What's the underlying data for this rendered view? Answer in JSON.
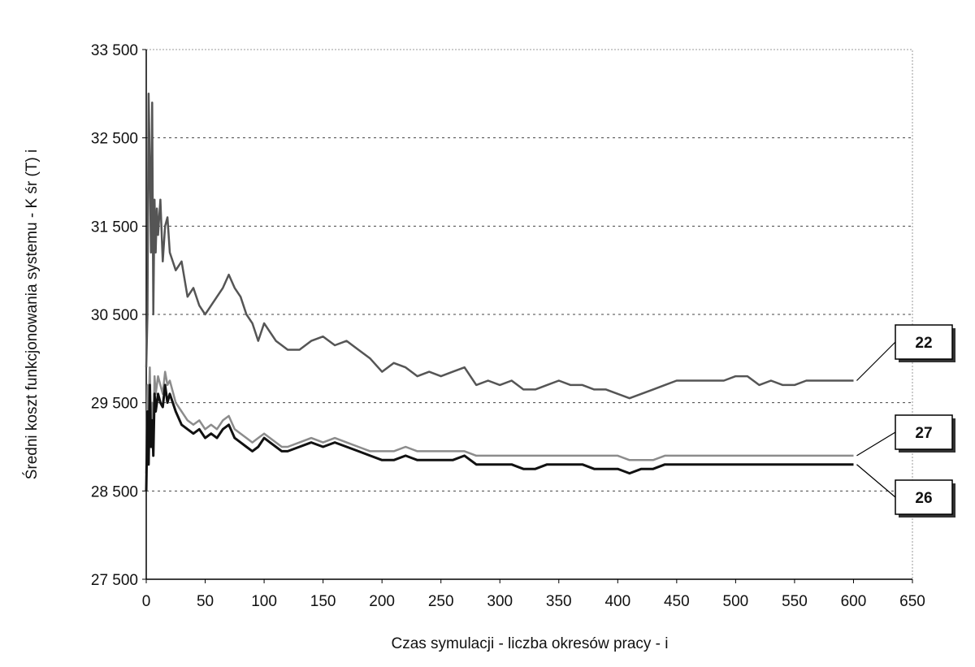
{
  "chart_data": {
    "type": "line",
    "xlabel": "Czas symulacji - liczba okresów pracy - i",
    "ylabel": "Średni koszt funkcjonowania systemu - K śr (T) i",
    "xlim": [
      0,
      650
    ],
    "ylim": [
      27500,
      33500
    ],
    "xticks": [
      0,
      50,
      100,
      150,
      200,
      250,
      300,
      350,
      400,
      450,
      500,
      550,
      600,
      650
    ],
    "yticks": [
      27500,
      28500,
      29500,
      30500,
      31500,
      32500,
      33500
    ],
    "xtick_labels": [
      "0",
      "50",
      "100",
      "150",
      "200",
      "250",
      "300",
      "350",
      "400",
      "450",
      "500",
      "550",
      "600",
      "650"
    ],
    "ytick_labels": [
      "27 500",
      "28 500",
      "29 500",
      "30 500",
      "31 500",
      "32 500",
      "33 500"
    ],
    "grid": "horizontal dashed",
    "legend": "none (callout labels at right)",
    "series": [
      {
        "name": "22",
        "color": "#555555",
        "x": [
          0,
          1,
          2,
          3,
          4,
          5,
          6,
          7,
          8,
          9,
          10,
          12,
          14,
          16,
          18,
          20,
          25,
          30,
          35,
          40,
          45,
          50,
          55,
          60,
          65,
          70,
          75,
          80,
          85,
          90,
          95,
          100,
          105,
          110,
          115,
          120,
          130,
          140,
          150,
          160,
          170,
          180,
          190,
          200,
          210,
          220,
          230,
          240,
          250,
          260,
          270,
          280,
          290,
          300,
          310,
          320,
          330,
          340,
          350,
          360,
          370,
          380,
          390,
          400,
          410,
          420,
          430,
          440,
          450,
          460,
          470,
          480,
          490,
          500,
          510,
          520,
          530,
          540,
          550,
          560,
          570,
          580,
          590,
          600
        ],
        "values": [
          29900,
          30500,
          33000,
          32200,
          31200,
          32900,
          30500,
          31800,
          31200,
          31700,
          31400,
          31800,
          31100,
          31500,
          31600,
          31200,
          31000,
          31100,
          30700,
          30800,
          30600,
          30500,
          30600,
          30700,
          30800,
          30950,
          30800,
          30700,
          30500,
          30400,
          30200,
          30400,
          30300,
          30200,
          30150,
          30100,
          30100,
          30200,
          30250,
          30150,
          30200,
          30100,
          30000,
          29850,
          29950,
          29900,
          29800,
          29850,
          29800,
          29850,
          29900,
          29700,
          29750,
          29700,
          29750,
          29650,
          29650,
          29700,
          29750,
          29700,
          29700,
          29650,
          29650,
          29600,
          29550,
          29600,
          29650,
          29700,
          29750,
          29750,
          29750,
          29750,
          29750,
          29800,
          29800,
          29700,
          29750,
          29700,
          29700,
          29750,
          29750,
          29750,
          29750,
          29750
        ]
      },
      {
        "name": "27",
        "color": "#8c8c8c",
        "x": [
          0,
          1,
          2,
          3,
          4,
          5,
          6,
          7,
          8,
          9,
          10,
          12,
          14,
          16,
          18,
          20,
          25,
          30,
          35,
          40,
          45,
          50,
          55,
          60,
          65,
          70,
          75,
          80,
          85,
          90,
          95,
          100,
          105,
          110,
          115,
          120,
          130,
          140,
          150,
          160,
          170,
          180,
          190,
          200,
          210,
          220,
          230,
          240,
          250,
          260,
          270,
          280,
          290,
          300,
          310,
          320,
          330,
          340,
          350,
          360,
          370,
          380,
          390,
          400,
          410,
          420,
          430,
          440,
          450,
          460,
          470,
          480,
          490,
          500,
          510,
          520,
          530,
          540,
          550,
          560,
          570,
          580,
          590,
          600
        ],
        "values": [
          28700,
          29700,
          29400,
          29900,
          29200,
          29500,
          29000,
          29800,
          29600,
          29700,
          29800,
          29700,
          29600,
          29850,
          29700,
          29750,
          29500,
          29400,
          29300,
          29250,
          29300,
          29200,
          29250,
          29200,
          29300,
          29350,
          29200,
          29150,
          29100,
          29050,
          29100,
          29150,
          29100,
          29050,
          29000,
          29000,
          29050,
          29100,
          29050,
          29100,
          29050,
          29000,
          28950,
          28950,
          28950,
          29000,
          28950,
          28950,
          28950,
          28950,
          28950,
          28900,
          28900,
          28900,
          28900,
          28900,
          28900,
          28900,
          28900,
          28900,
          28900,
          28900,
          28900,
          28900,
          28850,
          28850,
          28850,
          28900,
          28900,
          28900,
          28900,
          28900,
          28900,
          28900,
          28900,
          28900,
          28900,
          28900,
          28900,
          28900,
          28900,
          28900,
          28900,
          28900
        ]
      },
      {
        "name": "26",
        "color": "#111111",
        "x": [
          0,
          1,
          2,
          3,
          4,
          5,
          6,
          7,
          8,
          9,
          10,
          12,
          14,
          16,
          18,
          20,
          25,
          30,
          35,
          40,
          45,
          50,
          55,
          60,
          65,
          70,
          75,
          80,
          85,
          90,
          95,
          100,
          105,
          110,
          115,
          120,
          130,
          140,
          150,
          160,
          170,
          180,
          190,
          200,
          210,
          220,
          230,
          240,
          250,
          260,
          270,
          280,
          290,
          300,
          310,
          320,
          330,
          340,
          350,
          360,
          370,
          380,
          390,
          400,
          410,
          420,
          430,
          440,
          450,
          460,
          470,
          480,
          490,
          500,
          510,
          520,
          530,
          540,
          550,
          560,
          570,
          580,
          590,
          600
        ],
        "values": [
          28500,
          29400,
          28800,
          29700,
          29000,
          29300,
          28900,
          29600,
          29400,
          29500,
          29600,
          29500,
          29450,
          29700,
          29500,
          29600,
          29400,
          29250,
          29200,
          29150,
          29200,
          29100,
          29150,
          29100,
          29200,
          29250,
          29100,
          29050,
          29000,
          28950,
          29000,
          29100,
          29050,
          29000,
          28950,
          28950,
          29000,
          29050,
          29000,
          29050,
          29000,
          28950,
          28900,
          28850,
          28850,
          28900,
          28850,
          28850,
          28850,
          28850,
          28900,
          28800,
          28800,
          28800,
          28800,
          28750,
          28750,
          28800,
          28800,
          28800,
          28800,
          28750,
          28750,
          28750,
          28700,
          28750,
          28750,
          28800,
          28800,
          28800,
          28800,
          28800,
          28800,
          28800,
          28800,
          28800,
          28800,
          28800,
          28800,
          28800,
          28800,
          28800,
          28800,
          28800
        ]
      }
    ]
  }
}
